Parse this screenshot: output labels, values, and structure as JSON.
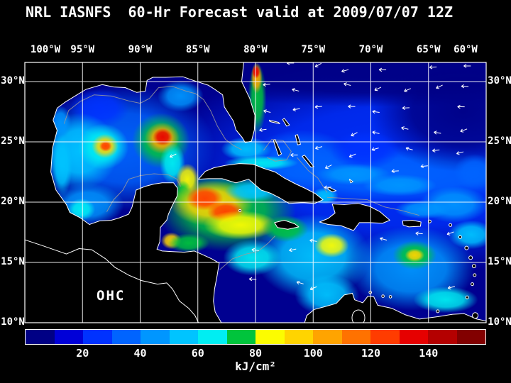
{
  "title": "NRL IASNFS  60-Hr Forecast valid at 2009/07/07 12Z",
  "map": {
    "field_label": "OHC"
  },
  "axes": {
    "lon_ticks": [
      "100°W",
      "95°W",
      "90°W",
      "85°W",
      "80°W",
      "75°W",
      "70°W",
      "65°W",
      "60°W"
    ],
    "lat_ticks": [
      "30°N",
      "25°N",
      "20°N",
      "15°N",
      "10°N"
    ]
  },
  "colorbar": {
    "tick_labels": [
      "20",
      "40",
      "60",
      "80",
      "100",
      "120",
      "140"
    ],
    "unit_label": "kJ/cm²"
  },
  "chart_data": {
    "type": "heatmap",
    "variable": "Ocean Heat Content (OHC)",
    "forecast": "NRL IASNFS 60-Hr Forecast valid at 2009/07/07 12Z",
    "units": "kJ/cm²",
    "lon_extent_deg_west": [
      100,
      60
    ],
    "lat_extent_deg_north": [
      10,
      31.6
    ],
    "grid_interval_deg": 5,
    "scale": {
      "min": 0,
      "max": 160,
      "interval": 10,
      "colors": [
        "#000085",
        "#0000d8",
        "#0032ff",
        "#0064ff",
        "#0096ff",
        "#00c4ff",
        "#00eef2",
        "#00c43c",
        "#fcfc00",
        "#ffd400",
        "#ffa400",
        "#ff7200",
        "#ff3c00",
        "#e60000",
        "#b40000",
        "#820000"
      ]
    },
    "features": [
      {
        "name": "atlantic-background",
        "lon_w": 67,
        "lat_n": 23,
        "rx_deg": 22,
        "ry_deg": 9,
        "ohc": 22
      },
      {
        "name": "atlantic-mid-band",
        "lon_w": 68,
        "lat_n": 22.3,
        "rx_deg": 13,
        "ry_deg": 2.4,
        "ohc": 32
      },
      {
        "name": "atlantic-north-low",
        "lon_w": 69,
        "lat_n": 30.5,
        "rx_deg": 20,
        "ry_deg": 2.6,
        "ohc": 4
      },
      {
        "name": "atlantic-northeast-low",
        "lon_w": 62,
        "lat_n": 27.5,
        "rx_deg": 8,
        "ry_deg": 5,
        "ohc": 6
      },
      {
        "name": "bahamas-region",
        "lon_w": 76,
        "lat_n": 23.5,
        "rx_deg": 4.5,
        "ry_deg": 2.5,
        "ohc": 35
      },
      {
        "name": "east-bahamas-patch",
        "lon_w": 70.5,
        "lat_n": 24.3,
        "rx_deg": 3.0,
        "ry_deg": 1.6,
        "ohc": 28
      },
      {
        "name": "gulf-of-mexico-background",
        "lon_w": 91.5,
        "lat_n": 24.5,
        "rx_deg": 8,
        "ry_deg": 5.2,
        "ohc": 38
      },
      {
        "name": "gulf-northwest-dark",
        "lon_w": 93.5,
        "lat_n": 27.8,
        "rx_deg": 2.6,
        "ry_deg": 1.6,
        "ohc": 28
      },
      {
        "name": "gulf-west-cyan",
        "lon_w": 95.3,
        "lat_n": 24.2,
        "rx_deg": 3.4,
        "ry_deg": 3.2,
        "ohc": 52
      },
      {
        "name": "texas-shelf-cyan",
        "lon_w": 96.9,
        "lat_n": 26.6,
        "rx_deg": 0.9,
        "ry_deg": 1.4,
        "ohc": 48
      },
      {
        "name": "mexico-coast-band",
        "lon_w": 96.8,
        "lat_n": 23.0,
        "rx_deg": 0.9,
        "ry_deg": 2.6,
        "ohc": 55
      },
      {
        "name": "bay-of-campeche",
        "lon_w": 94.6,
        "lat_n": 19.8,
        "rx_deg": 3.2,
        "ry_deg": 1.8,
        "ohc": 48
      },
      {
        "name": "campeche-green-spot",
        "lon_w": 95.1,
        "lat_n": 19.4,
        "rx_deg": 1.2,
        "ry_deg": 0.9,
        "ohc": 62
      },
      {
        "name": "ne-gulf-patch",
        "lon_w": 86.5,
        "lat_n": 28.8,
        "rx_deg": 2.0,
        "ry_deg": 1.3,
        "ohc": 45
      },
      {
        "name": "caribbean-nw-basin",
        "lon_w": 82.5,
        "lat_n": 19.3,
        "rx_deg": 6,
        "ry_deg": 3.4,
        "ohc": 70
      },
      {
        "name": "caribbean-central",
        "lon_w": 75,
        "lat_n": 15.5,
        "rx_deg": 5,
        "ry_deg": 3.5,
        "ohc": 55
      },
      {
        "name": "caribbean-east",
        "lon_w": 66.5,
        "lat_n": 14.5,
        "rx_deg": 5.5,
        "ry_deg": 3.5,
        "ohc": 48
      },
      {
        "name": "colombian-basin",
        "lon_w": 73.8,
        "lat_n": 12.3,
        "rx_deg": 2.8,
        "ry_deg": 1.7,
        "ohc": 55
      },
      {
        "name": "venezuela-coast-green",
        "lon_w": 63.5,
        "lat_n": 11.9,
        "rx_deg": 2.8,
        "ry_deg": 1.1,
        "ohc": 62
      },
      {
        "name": "straits-of-florida",
        "lon_w": 80.8,
        "lat_n": 24.4,
        "rx_deg": 2.2,
        "ry_deg": 1.0,
        "ohc": 55
      },
      {
        "name": "north-cuba-band",
        "lon_w": 79.5,
        "lat_n": 23.25,
        "rx_deg": 3.2,
        "ry_deg": 0.6,
        "ohc": 62
      },
      {
        "name": "west-gulf-eddy-outer",
        "lon_w": 93.2,
        "lat_n": 24.6,
        "rx_deg": 2.2,
        "ry_deg": 1.9,
        "ohc": 65
      },
      {
        "name": "west-gulf-eddy-mid",
        "lon_w": 93.05,
        "lat_n": 24.65,
        "rx_deg": 1.15,
        "ry_deg": 1.0,
        "ohc": 90
      },
      {
        "name": "west-gulf-eddy-core",
        "lon_w": 93.0,
        "lat_n": 24.65,
        "rx_deg": 0.55,
        "ry_deg": 0.45,
        "ohc": 125
      },
      {
        "name": "loop-current-eddy-outer",
        "lon_w": 88.2,
        "lat_n": 25.1,
        "rx_deg": 2.5,
        "ry_deg": 2.3,
        "ohc": 72
      },
      {
        "name": "loop-current-eddy-mid",
        "lon_w": 88.1,
        "lat_n": 25.3,
        "rx_deg": 1.5,
        "ry_deg": 1.3,
        "ohc": 100
      },
      {
        "name": "loop-current-eddy-core",
        "lon_w": 88.05,
        "lat_n": 25.4,
        "rx_deg": 0.85,
        "ry_deg": 0.72,
        "ohc": 132
      },
      {
        "name": "loop-current-neck",
        "lon_w": 87.2,
        "lat_n": 23.2,
        "rx_deg": 1.1,
        "ry_deg": 1.7,
        "ohc": 68
      },
      {
        "name": "yucatan-channel-warm",
        "lon_w": 85.9,
        "lat_n": 21.9,
        "rx_deg": 1.0,
        "ry_deg": 1.3,
        "ohc": 85
      },
      {
        "name": "yucatan-current",
        "lon_w": 86.3,
        "lat_n": 20.6,
        "rx_deg": 0.8,
        "ry_deg": 1.2,
        "ohc": 75
      },
      {
        "name": "nw-caribbean-warm-pool",
        "lon_w": 83.8,
        "lat_n": 19.9,
        "rx_deg": 3.6,
        "ry_deg": 1.9,
        "ohc": 95
      },
      {
        "name": "nw-caribbean-core-west",
        "lon_w": 84.4,
        "lat_n": 20.3,
        "rx_deg": 1.6,
        "ry_deg": 1.0,
        "ohc": 128
      },
      {
        "name": "nw-caribbean-core-east",
        "lon_w": 82.6,
        "lat_n": 19.2,
        "rx_deg": 1.6,
        "ry_deg": 0.9,
        "ohc": 122
      },
      {
        "name": "cayman-warm-band",
        "lon_w": 81.3,
        "lat_n": 18.1,
        "rx_deg": 3.2,
        "ry_deg": 1.2,
        "ohc": 88
      },
      {
        "name": "gulf-of-honduras-warm",
        "lon_w": 87.3,
        "lat_n": 16.8,
        "rx_deg": 0.9,
        "ry_deg": 0.7,
        "ohc": 95
      },
      {
        "name": "honduras-coast-warm",
        "lon_w": 85.8,
        "lat_n": 16.6,
        "rx_deg": 1.8,
        "ry_deg": 0.8,
        "ohc": 78
      },
      {
        "name": "jamaica-band",
        "lon_w": 77.4,
        "lat_n": 17.8,
        "rx_deg": 2.0,
        "ry_deg": 1.1,
        "ohc": 70
      },
      {
        "name": "nicaragua-rise-green",
        "lon_w": 80.3,
        "lat_n": 15.4,
        "rx_deg": 2.5,
        "ry_deg": 1.5,
        "ohc": 62
      },
      {
        "name": "south-cuba-moderate",
        "lon_w": 80.3,
        "lat_n": 20.9,
        "rx_deg": 2.4,
        "ry_deg": 0.9,
        "ohc": 58
      },
      {
        "name": "gulf-stream",
        "lon_w": 79.85,
        "lat_n": 28.6,
        "rx_deg": 0.8,
        "ry_deg": 3.0,
        "ohc": 78
      },
      {
        "name": "gulf-stream-core",
        "lon_w": 79.9,
        "lat_n": 30.3,
        "rx_deg": 0.5,
        "ry_deg": 1.3,
        "ohc": 108
      },
      {
        "name": "gulf-stream-hot-spot",
        "lon_w": 79.95,
        "lat_n": 30.8,
        "rx_deg": 0.35,
        "ry_deg": 0.55,
        "ohc": 132
      },
      {
        "name": "south-hispaniola-eddy",
        "lon_w": 73.4,
        "lat_n": 16.4,
        "rx_deg": 1.5,
        "ry_deg": 1.0,
        "ohc": 82
      },
      {
        "name": "east-caribbean-eddy",
        "lon_w": 66.2,
        "lat_n": 15.6,
        "rx_deg": 1.9,
        "ry_deg": 1.2,
        "ohc": 72
      },
      {
        "name": "east-caribbean-eddy-core",
        "lon_w": 66.2,
        "lat_n": 15.6,
        "rx_deg": 0.85,
        "ry_deg": 0.55,
        "ohc": 92
      },
      {
        "name": "north-puerto-rico-band",
        "lon_w": 65.5,
        "lat_n": 19.4,
        "rx_deg": 2.4,
        "ry_deg": 0.8,
        "ohc": 48
      },
      {
        "name": "atlantic-filament-1",
        "lon_w": 71.5,
        "lat_n": 22.3,
        "rx_deg": 3.2,
        "ry_deg": 0.9,
        "ohc": 40
      },
      {
        "name": "atlantic-filament-2",
        "lon_w": 67.5,
        "lat_n": 21.4,
        "rx_deg": 3.2,
        "ry_deg": 0.9,
        "ohc": 45
      },
      {
        "name": "atlantic-filament-3",
        "lon_w": 62.8,
        "lat_n": 19.8,
        "rx_deg": 3.0,
        "ry_deg": 1.5,
        "ohc": 42
      },
      {
        "name": "atlantic-filament-4",
        "lon_w": 61.3,
        "lat_n": 17.3,
        "rx_deg": 2.0,
        "ry_deg": 1.2,
        "ohc": 52
      },
      {
        "name": "atlantic-filament-5",
        "lon_w": 61.0,
        "lat_n": 22.5,
        "rx_deg": 1.8,
        "ry_deg": 1.5,
        "ohc": 38
      },
      {
        "name": "windward-passage",
        "lon_w": 74.0,
        "lat_n": 20.5,
        "rx_deg": 1.2,
        "ry_deg": 0.7,
        "ohc": 50
      }
    ]
  }
}
